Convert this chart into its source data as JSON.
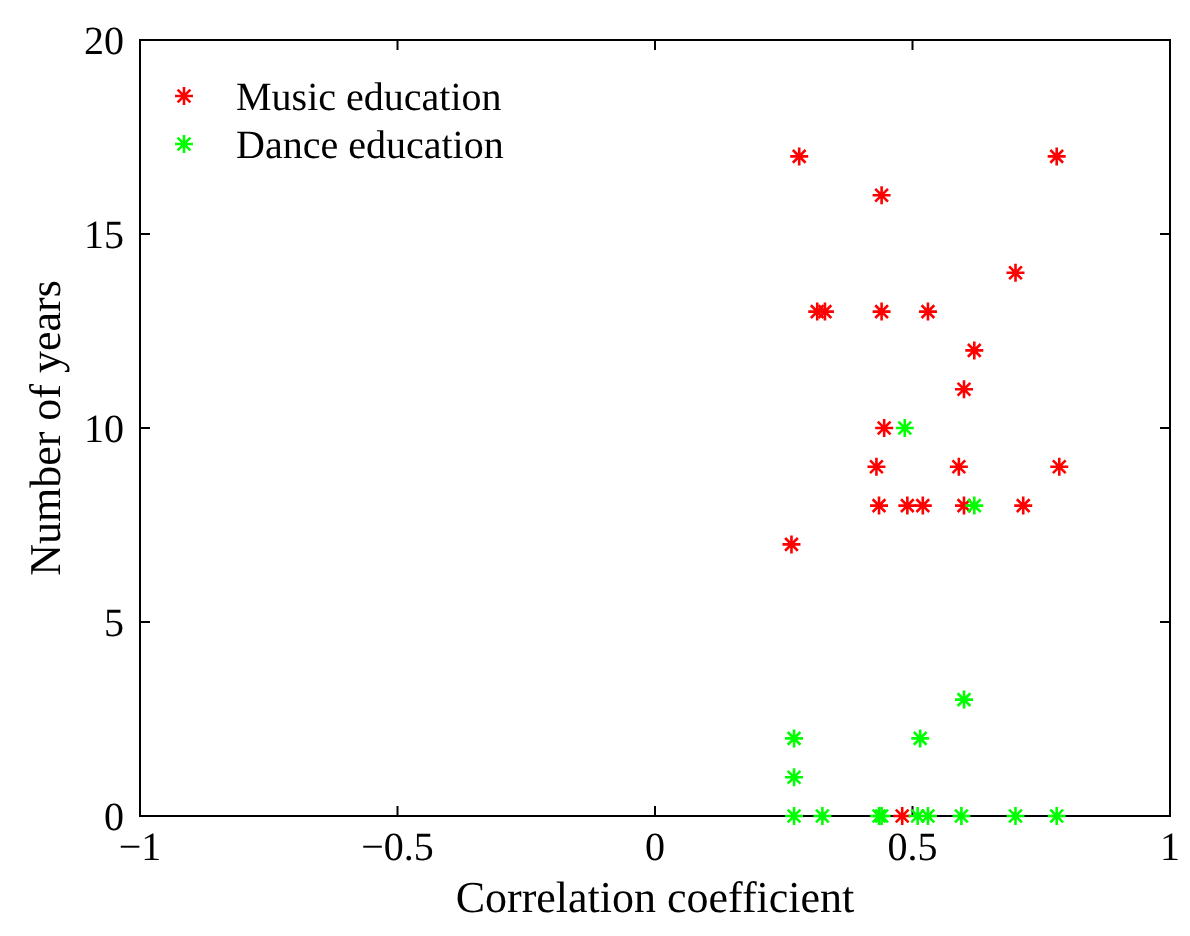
{
  "chart_data": {
    "type": "scatter",
    "xlabel": "Correlation coefficient",
    "ylabel": "Number of years",
    "xlim": [
      -1,
      1
    ],
    "xticks": [
      -1,
      -0.5,
      0,
      0.5,
      1
    ],
    "ylim": [
      0,
      20
    ],
    "yticks": [
      0,
      5,
      10,
      15,
      20
    ],
    "marker": "cross",
    "legend": "top left",
    "grid": false,
    "series": [
      {
        "name": "Music education",
        "color": "#ff0000",
        "x": [
          0.28,
          0.78,
          0.44,
          0.7,
          0.315,
          0.33,
          0.44,
          0.53,
          0.62,
          0.6,
          0.445,
          0.43,
          0.59,
          0.785,
          0.435,
          0.49,
          0.52,
          0.6,
          0.715,
          0.265,
          0.48
        ],
        "values": [
          17,
          17,
          16,
          14,
          13,
          13,
          13,
          13,
          12,
          11,
          10,
          9,
          9,
          9,
          8,
          8,
          8,
          8,
          8,
          7,
          0
        ]
      },
      {
        "name": "Dance education",
        "color": "#00ff00",
        "x": [
          0.485,
          0.62,
          0.6,
          0.27,
          0.515,
          0.27,
          0.27,
          0.325,
          0.435,
          0.44,
          0.51,
          0.53,
          0.595,
          0.7,
          0.78
        ],
        "values": [
          10,
          8,
          3,
          2,
          2,
          1,
          0,
          0,
          0,
          0,
          0,
          0,
          0,
          0,
          0
        ]
      }
    ]
  }
}
